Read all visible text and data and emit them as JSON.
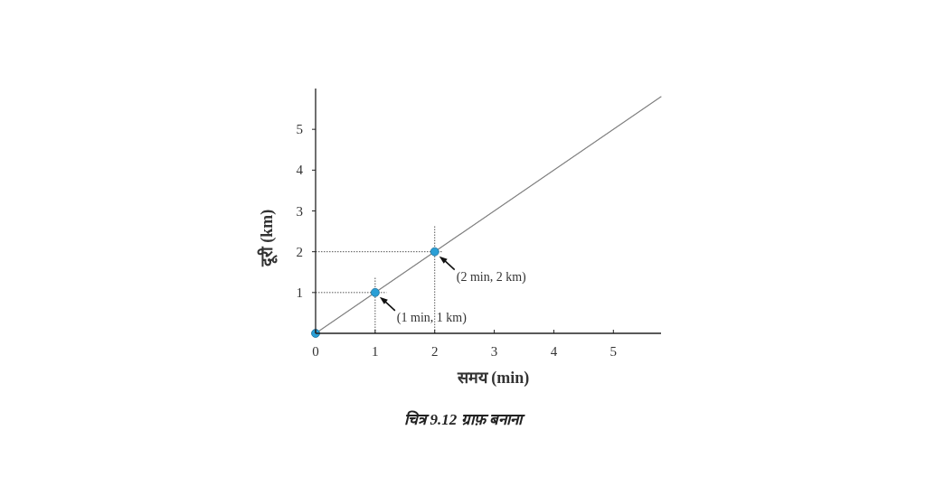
{
  "chart_data": {
    "type": "scatter",
    "xlabel": "समय (min)",
    "ylabel": "दूरी (km)",
    "xlim": [
      0,
      5.8
    ],
    "ylim": [
      0,
      6
    ],
    "xticks": [
      0,
      1,
      2,
      3,
      4,
      5
    ],
    "yticks": [
      1,
      2,
      3,
      4,
      5
    ],
    "grid": false,
    "series": [
      {
        "type": "line",
        "x": [
          0,
          5.8
        ],
        "values": [
          0,
          5.8
        ],
        "color": "#808080",
        "marker": "none",
        "line_style": "solid"
      },
      {
        "type": "line",
        "x": [
          1,
          1
        ],
        "values": [
          0,
          1.38
        ],
        "color": "#555555",
        "marker": "none",
        "line_style": "dotted"
      },
      {
        "type": "line",
        "x": [
          0,
          1.19
        ],
        "values": [
          1,
          1
        ],
        "color": "#555555",
        "marker": "none",
        "line_style": "dotted"
      },
      {
        "type": "line",
        "x": [
          2,
          2
        ],
        "values": [
          0,
          2.64
        ],
        "color": "#555555",
        "marker": "none",
        "line_style": "dotted"
      },
      {
        "type": "line",
        "x": [
          0,
          2.12
        ],
        "values": [
          2,
          2
        ],
        "color": "#555555",
        "marker": "none",
        "line_style": "dotted"
      },
      {
        "x": [
          0,
          1,
          2
        ],
        "values": [
          0,
          1,
          2
        ],
        "color": "#2a9fd6",
        "marker": "circle"
      }
    ],
    "annotations": [
      {
        "text": "(1 min, 1 km)",
        "x": 1,
        "y": 1
      },
      {
        "text": "(2 min, 2 km)",
        "x": 2,
        "y": 2
      },
      "चित्र 9.12 ग्राफ़ बनाना"
    ]
  }
}
